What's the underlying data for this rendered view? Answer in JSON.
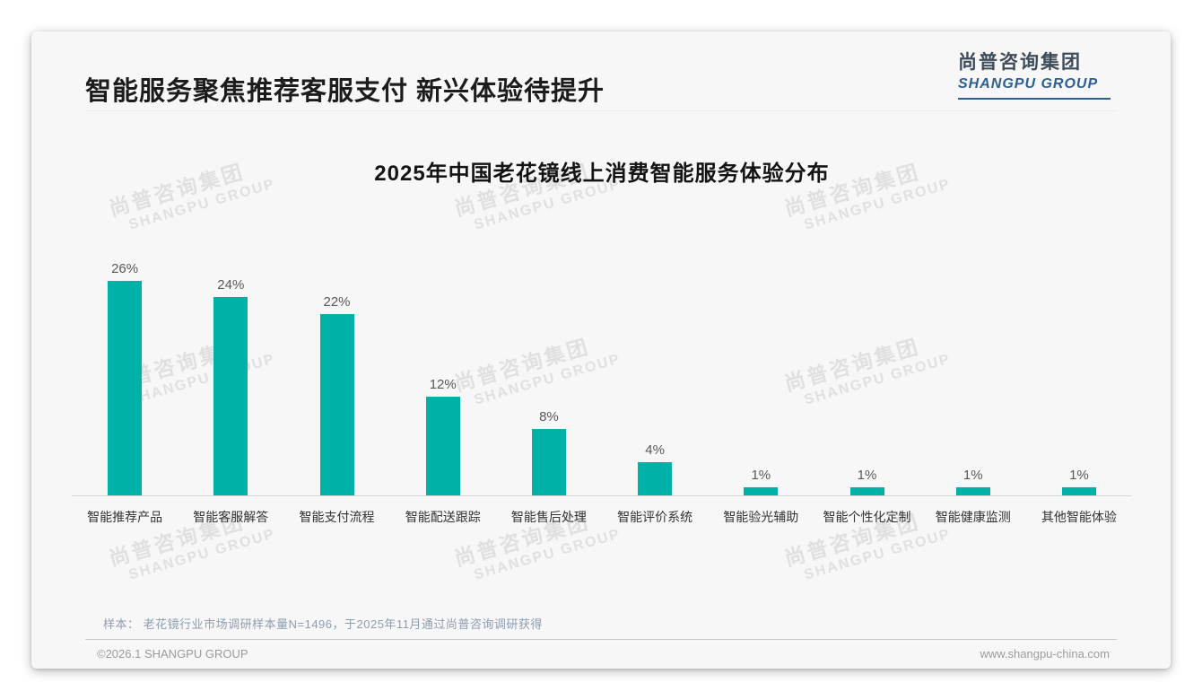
{
  "header": {
    "title": "智能服务聚焦推荐客服支付 新兴体验待提升",
    "logo": {
      "cn": "尚普咨询集团",
      "en": "SHANGPU GROUP",
      "accent_color": "#2e5d92"
    }
  },
  "chart_data": {
    "type": "bar",
    "title": "2025年中国老花镜线上消费智能服务体验分布",
    "categories": [
      "智能推荐产品",
      "智能客服解答",
      "智能支付流程",
      "智能配送跟踪",
      "智能售后处理",
      "智能评价系统",
      "智能验光辅助",
      "智能个性化定制",
      "智能健康监测",
      "其他智能体验"
    ],
    "values": [
      26,
      24,
      22,
      12,
      8,
      4,
      1,
      1,
      1,
      1
    ],
    "value_suffix": "%",
    "bar_color": "#00b1a8",
    "xlabel": "",
    "ylabel": "",
    "ylim": [
      0,
      28
    ],
    "grid": false,
    "legend": false,
    "data_labels": true
  },
  "watermark": {
    "cn": "尚普咨询集团",
    "en": "SHANGPU GROUP"
  },
  "footnote": "样本： 老花镜行业市场调研样本量N=1496，于2025年11月通过尚普咨询调研获得",
  "footer": {
    "left": "©2026.1 SHANGPU GROUP",
    "right": "www.shangpu-china.com"
  }
}
